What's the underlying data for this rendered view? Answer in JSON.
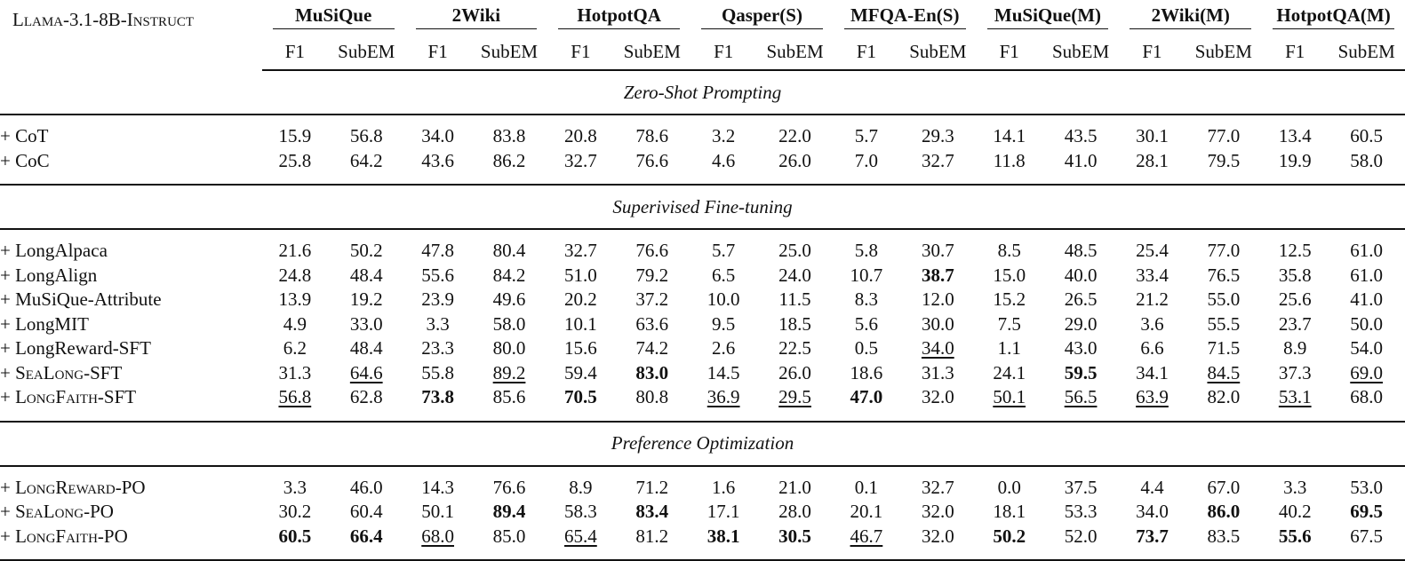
{
  "model": "Llama-3.1-8B-Instruct",
  "datasets": [
    "MuSiQue",
    "2Wiki",
    "HotpotQA",
    "Qasper(S)",
    "MFQA-En(S)",
    "MuSiQue(M)",
    "2Wiki(M)",
    "HotpotQA(M)"
  ],
  "metrics": [
    "F1",
    "SubEM"
  ],
  "sections": [
    {
      "title": "Zero-Shot Prompting",
      "rows": [
        {
          "method": "+ CoT",
          "values": [
            {
              "v": "15.9"
            },
            {
              "v": "56.8"
            },
            {
              "v": "34.0"
            },
            {
              "v": "83.8"
            },
            {
              "v": "20.8"
            },
            {
              "v": "78.6"
            },
            {
              "v": "3.2"
            },
            {
              "v": "22.0"
            },
            {
              "v": "5.7"
            },
            {
              "v": "29.3"
            },
            {
              "v": "14.1"
            },
            {
              "v": "43.5"
            },
            {
              "v": "30.1"
            },
            {
              "v": "77.0"
            },
            {
              "v": "13.4"
            },
            {
              "v": "60.5"
            }
          ]
        },
        {
          "method": "+ CoC",
          "values": [
            {
              "v": "25.8"
            },
            {
              "v": "64.2"
            },
            {
              "v": "43.6"
            },
            {
              "v": "86.2"
            },
            {
              "v": "32.7"
            },
            {
              "v": "76.6"
            },
            {
              "v": "4.6"
            },
            {
              "v": "26.0"
            },
            {
              "v": "7.0"
            },
            {
              "v": "32.7"
            },
            {
              "v": "11.8"
            },
            {
              "v": "41.0"
            },
            {
              "v": "28.1"
            },
            {
              "v": "79.5"
            },
            {
              "v": "19.9"
            },
            {
              "v": "58.0"
            }
          ]
        }
      ]
    },
    {
      "title": "Superivised Fine-tuning",
      "rows": [
        {
          "method": "+ LongAlpaca",
          "values": [
            {
              "v": "21.6"
            },
            {
              "v": "50.2"
            },
            {
              "v": "47.8"
            },
            {
              "v": "80.4"
            },
            {
              "v": "32.7"
            },
            {
              "v": "76.6"
            },
            {
              "v": "5.7"
            },
            {
              "v": "25.0"
            },
            {
              "v": "5.8"
            },
            {
              "v": "30.7"
            },
            {
              "v": "8.5"
            },
            {
              "v": "48.5"
            },
            {
              "v": "25.4"
            },
            {
              "v": "77.0"
            },
            {
              "v": "12.5"
            },
            {
              "v": "61.0"
            }
          ]
        },
        {
          "method": "+ LongAlign",
          "values": [
            {
              "v": "24.8"
            },
            {
              "v": "48.4"
            },
            {
              "v": "55.6"
            },
            {
              "v": "84.2"
            },
            {
              "v": "51.0"
            },
            {
              "v": "79.2"
            },
            {
              "v": "6.5"
            },
            {
              "v": "24.0"
            },
            {
              "v": "10.7"
            },
            {
              "v": "38.7",
              "s": "b"
            },
            {
              "v": "15.0"
            },
            {
              "v": "40.0"
            },
            {
              "v": "33.4"
            },
            {
              "v": "76.5"
            },
            {
              "v": "35.8"
            },
            {
              "v": "61.0"
            }
          ]
        },
        {
          "method": "+ MuSiQue-Attribute",
          "values": [
            {
              "v": "13.9"
            },
            {
              "v": "19.2"
            },
            {
              "v": "23.9"
            },
            {
              "v": "49.6"
            },
            {
              "v": "20.2"
            },
            {
              "v": "37.2"
            },
            {
              "v": "10.0"
            },
            {
              "v": "11.5"
            },
            {
              "v": "8.3"
            },
            {
              "v": "12.0"
            },
            {
              "v": "15.2"
            },
            {
              "v": "26.5"
            },
            {
              "v": "21.2"
            },
            {
              "v": "55.0"
            },
            {
              "v": "25.6"
            },
            {
              "v": "41.0"
            }
          ]
        },
        {
          "method": "+ LongMIT",
          "values": [
            {
              "v": "4.9"
            },
            {
              "v": "33.0"
            },
            {
              "v": "3.3"
            },
            {
              "v": "58.0"
            },
            {
              "v": "10.1"
            },
            {
              "v": "63.6"
            },
            {
              "v": "9.5"
            },
            {
              "v": "18.5"
            },
            {
              "v": "5.6"
            },
            {
              "v": "30.0"
            },
            {
              "v": "7.5"
            },
            {
              "v": "29.0"
            },
            {
              "v": "3.6"
            },
            {
              "v": "55.5"
            },
            {
              "v": "23.7"
            },
            {
              "v": "50.0"
            }
          ]
        },
        {
          "method": "+ LongReward-SFT",
          "values": [
            {
              "v": "6.2"
            },
            {
              "v": "48.4"
            },
            {
              "v": "23.3"
            },
            {
              "v": "80.0"
            },
            {
              "v": "15.6"
            },
            {
              "v": "74.2"
            },
            {
              "v": "2.6"
            },
            {
              "v": "22.5"
            },
            {
              "v": "0.5"
            },
            {
              "v": "34.0",
              "s": "u"
            },
            {
              "v": "1.1"
            },
            {
              "v": "43.0"
            },
            {
              "v": "6.6"
            },
            {
              "v": "71.5"
            },
            {
              "v": "8.9"
            },
            {
              "v": "54.0"
            }
          ]
        },
        {
          "method": "+ SeaLong-SFT",
          "sc": true,
          "values": [
            {
              "v": "31.3"
            },
            {
              "v": "64.6",
              "s": "u"
            },
            {
              "v": "55.8"
            },
            {
              "v": "89.2",
              "s": "u"
            },
            {
              "v": "59.4"
            },
            {
              "v": "83.0",
              "s": "b"
            },
            {
              "v": "14.5"
            },
            {
              "v": "26.0"
            },
            {
              "v": "18.6"
            },
            {
              "v": "31.3"
            },
            {
              "v": "24.1"
            },
            {
              "v": "59.5",
              "s": "b"
            },
            {
              "v": "34.1"
            },
            {
              "v": "84.5",
              "s": "u"
            },
            {
              "v": "37.3"
            },
            {
              "v": "69.0",
              "s": "u"
            }
          ]
        },
        {
          "method": "+ LongFaith-SFT",
          "sc": true,
          "values": [
            {
              "v": "56.8",
              "s": "u"
            },
            {
              "v": "62.8"
            },
            {
              "v": "73.8",
              "s": "b"
            },
            {
              "v": "85.6"
            },
            {
              "v": "70.5",
              "s": "b"
            },
            {
              "v": "80.8"
            },
            {
              "v": "36.9",
              "s": "u"
            },
            {
              "v": "29.5",
              "s": "u"
            },
            {
              "v": "47.0",
              "s": "b"
            },
            {
              "v": "32.0"
            },
            {
              "v": "50.1",
              "s": "u"
            },
            {
              "v": "56.5",
              "s": "u"
            },
            {
              "v": "63.9",
              "s": "u"
            },
            {
              "v": "82.0"
            },
            {
              "v": "53.1",
              "s": "u"
            },
            {
              "v": "68.0"
            }
          ]
        }
      ]
    },
    {
      "title": "Preference Optimization",
      "rows": [
        {
          "method": "+ LongReward-PO",
          "sc": true,
          "values": [
            {
              "v": "3.3"
            },
            {
              "v": "46.0"
            },
            {
              "v": "14.3"
            },
            {
              "v": "76.6"
            },
            {
              "v": "8.9"
            },
            {
              "v": "71.2"
            },
            {
              "v": "1.6"
            },
            {
              "v": "21.0"
            },
            {
              "v": "0.1"
            },
            {
              "v": "32.7"
            },
            {
              "v": "0.0"
            },
            {
              "v": "37.5"
            },
            {
              "v": "4.4"
            },
            {
              "v": "67.0"
            },
            {
              "v": "3.3"
            },
            {
              "v": "53.0"
            }
          ]
        },
        {
          "method": "+ SeaLong-PO",
          "sc": true,
          "values": [
            {
              "v": "30.2"
            },
            {
              "v": "60.4"
            },
            {
              "v": "50.1"
            },
            {
              "v": "89.4",
              "s": "b"
            },
            {
              "v": "58.3"
            },
            {
              "v": "83.4",
              "s": "b"
            },
            {
              "v": "17.1"
            },
            {
              "v": "28.0"
            },
            {
              "v": "20.1"
            },
            {
              "v": "32.0"
            },
            {
              "v": "18.1"
            },
            {
              "v": "53.3"
            },
            {
              "v": "34.0"
            },
            {
              "v": "86.0",
              "s": "b"
            },
            {
              "v": "40.2"
            },
            {
              "v": "69.5",
              "s": "b"
            }
          ]
        },
        {
          "method": "+ LongFaith-PO",
          "sc": true,
          "values": [
            {
              "v": "60.5",
              "s": "b"
            },
            {
              "v": "66.4",
              "s": "b"
            },
            {
              "v": "68.0",
              "s": "u"
            },
            {
              "v": "85.0"
            },
            {
              "v": "65.4",
              "s": "u"
            },
            {
              "v": "81.2"
            },
            {
              "v": "38.1",
              "s": "b"
            },
            {
              "v": "30.5",
              "s": "b"
            },
            {
              "v": "46.7",
              "s": "u"
            },
            {
              "v": "32.0"
            },
            {
              "v": "50.2",
              "s": "b"
            },
            {
              "v": "52.0"
            },
            {
              "v": "73.7",
              "s": "b"
            },
            {
              "v": "83.5"
            },
            {
              "v": "55.6",
              "s": "b"
            },
            {
              "v": "67.5"
            }
          ]
        }
      ]
    }
  ]
}
